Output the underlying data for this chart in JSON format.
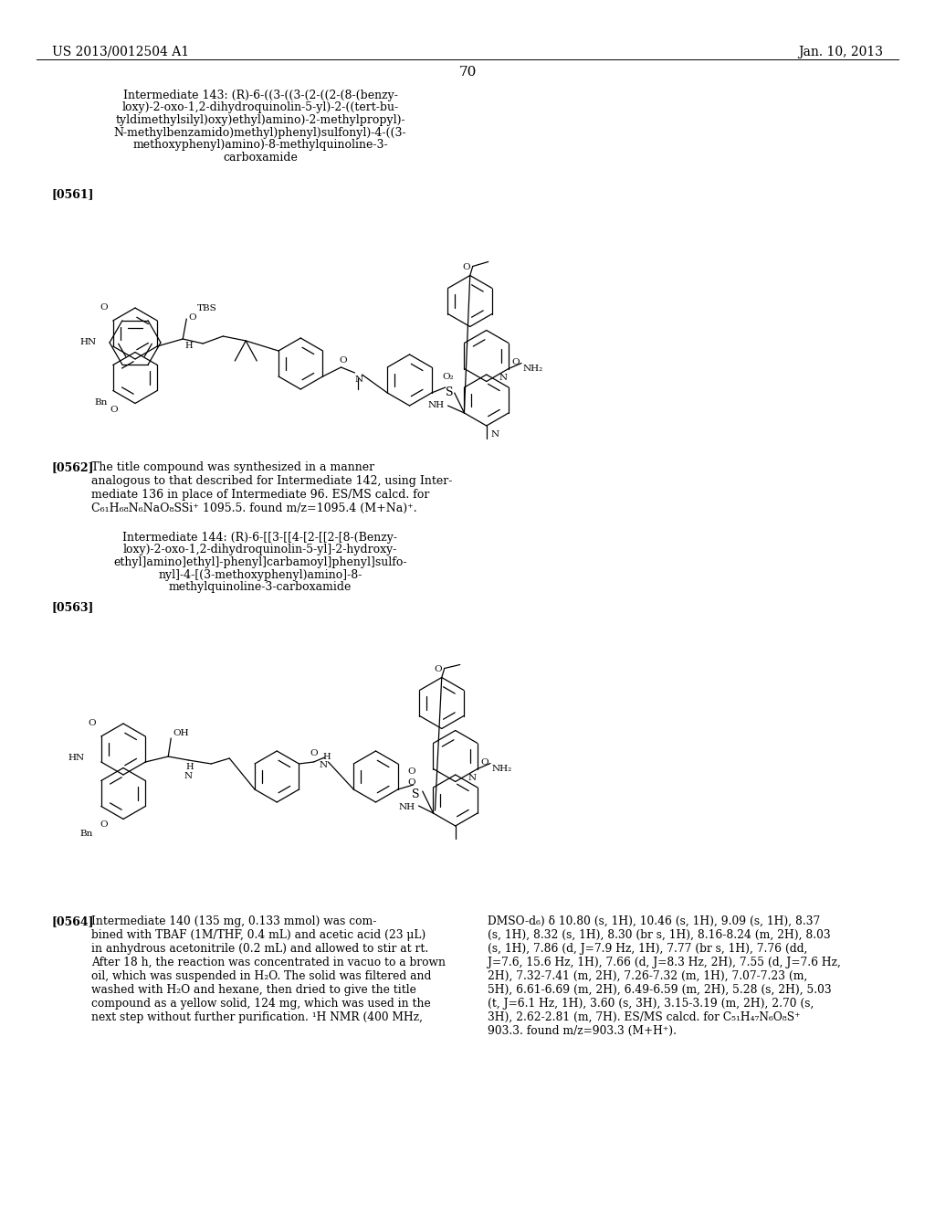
{
  "background_color": "#ffffff",
  "header_left": "US 2013/0012504 A1",
  "header_right": "Jan. 10, 2013",
  "page_number": "70",
  "compound_143_lines": [
    "Intermediate 143: (R)-6-((3-((3-(2-((2-(8-(benzy-",
    "loxy)-2-oxo-1,2-dihydroquinolin-5-yl)-2-((tert-bu-",
    "tyldimethylsilyl)oxy)ethyl)amino)-2-methylpropyl)-",
    "N-methylbenzamido)methyl)phenyl)sulfonyl)-4-((3-",
    "methoxyphenyl)amino)-8-methylquinoline-3-",
    "carboxamide"
  ],
  "label_0561": "[0561]",
  "para_0562_bold": "[0562]",
  "para_0562_text": "The title compound was synthesized in a manner\nanalogous to that described for Intermediate 142, using Inter-\nmediate 136 in place of Intermediate 96. ES/MS calcd. for\nC₆₁H₆₈N₆NaO₈SSi⁺ 1095.5. found m/z=1095.4 (M+Na)⁺.",
  "compound_144_lines": [
    "Intermediate 144: (R)-6-[[3-[[4-[2-[[2-[8-(Benzy-",
    "loxy)-2-oxo-1,2-dihydroquinolin-5-yl]-2-hydroxy-",
    "ethyl]amino]ethyl]-phenyl]carbamoyl]phenyl]sulfo-",
    "nyl]-4-[(3-methoxyphenyl)amino]-8-",
    "methylquinoline-3-carboxamide"
  ],
  "label_0563": "[0563]",
  "para_0564_bold": "[0564]",
  "para_0564_left": "Intermediate 140 (135 mg, 0.133 mmol) was com-\nbined with TBAF (1M/THF, 0.4 mL) and acetic acid (23 μL)\nin anhydrous acetonitrile (0.2 mL) and allowed to stir at rt.\nAfter 18 h, the reaction was concentrated in vacuo to a brown\noil, which was suspended in H₂O. The solid was filtered and\nwashed with H₂O and hexane, then dried to give the title\ncompound as a yellow solid, 124 mg, which was used in the\nnext step without further purification. ¹H NMR (400 MHz,",
  "para_0564_right": "DMSO-d₆) δ 10.80 (s, 1H), 10.46 (s, 1H), 9.09 (s, 1H), 8.37\n(s, 1H), 8.32 (s, 1H), 8.30 (br s, 1H), 8.16-8.24 (m, 2H), 8.03\n(s, 1H), 7.86 (d, J=7.9 Hz, 1H), 7.77 (br s, 1H), 7.76 (dd,\nJ=7.6, 15.6 Hz, 1H), 7.66 (d, J=8.3 Hz, 2H), 7.55 (d, J=7.6 Hz,\n2H), 7.32-7.41 (m, 2H), 7.26-7.32 (m, 1H), 7.07-7.23 (m,\n5H), 6.61-6.69 (m, 2H), 6.49-6.59 (m, 2H), 5.28 (s, 2H), 5.03\n(t, J=6.1 Hz, 1H), 3.60 (s, 3H), 3.15-3.19 (m, 2H), 2.70 (s,\n3H), 2.62-2.81 (m, 7H). ES/MS calcd. for C₅₁H₄₇N₆O₈S⁺\n903.3. found m/z=903.3 (M+H⁺)."
}
